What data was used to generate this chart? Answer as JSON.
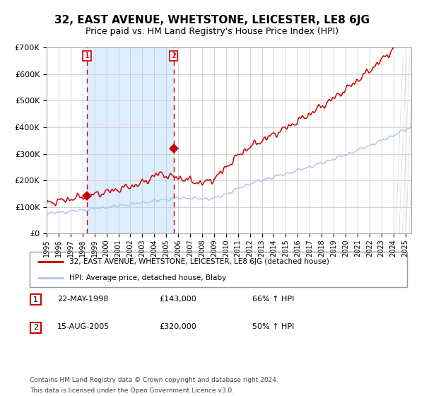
{
  "title": "32, EAST AVENUE, WHETSTONE, LEICESTER, LE8 6JG",
  "subtitle": "Price paid vs. HM Land Registry's House Price Index (HPI)",
  "title_fontsize": 11,
  "subtitle_fontsize": 9,
  "ylim": [
    0,
    700000
  ],
  "yticks": [
    0,
    100000,
    200000,
    300000,
    400000,
    500000,
    600000,
    700000
  ],
  "ytick_labels": [
    "£0",
    "£100K",
    "£200K",
    "£300K",
    "£400K",
    "£500K",
    "£600K",
    "£700K"
  ],
  "grid_color": "#cccccc",
  "hpi_line_color": "#aac8e8",
  "price_line_color": "#cc0000",
  "shade_color": "#ddeeff",
  "t1": 1998.38,
  "t2": 2005.62,
  "p1": 143000,
  "p2": 320000,
  "label1": "1",
  "label2": "2",
  "legend_label1": "32, EAST AVENUE, WHETSTONE, LEICESTER, LE8 6JG (detached house)",
  "legend_label2": "HPI: Average price, detached house, Blaby",
  "table_row1": [
    "1",
    "22-MAY-1998",
    "£143,000",
    "66% ↑ HPI"
  ],
  "table_row2": [
    "2",
    "15-AUG-2005",
    "£320,000",
    "50% ↑ HPI"
  ],
  "footnote1": "Contains HM Land Registry data © Crown copyright and database right 2024.",
  "footnote2": "This data is licensed under the Open Government Licence v3.0.",
  "xmin": 1995.0,
  "xmax": 2025.5
}
